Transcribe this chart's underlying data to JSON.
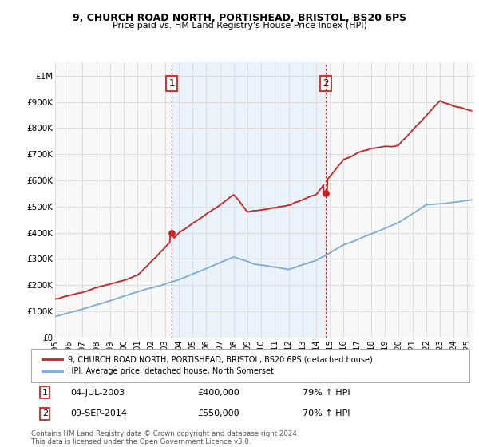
{
  "title1": "9, CHURCH ROAD NORTH, PORTISHEAD, BRISTOL, BS20 6PS",
  "title2": "Price paid vs. HM Land Registry's House Price Index (HPI)",
  "ylabel_ticks": [
    "£0",
    "£100K",
    "£200K",
    "£300K",
    "£400K",
    "£500K",
    "£600K",
    "£700K",
    "£800K",
    "£900K",
    "£1M"
  ],
  "ytick_values": [
    0,
    100000,
    200000,
    300000,
    400000,
    500000,
    600000,
    700000,
    800000,
    900000,
    1000000
  ],
  "ylim": [
    0,
    1050000
  ],
  "sale1_price": 400000,
  "sale2_price": 550000,
  "sale1_date": "04-JUL-2003",
  "sale2_date": "09-SEP-2014",
  "sale1_label": "79% ↑ HPI",
  "sale2_label": "70% ↑ HPI",
  "sale1_x": 2003.5,
  "sale2_x": 2014.67,
  "red_color": "#cc2222",
  "blue_color": "#7aabdc",
  "shade_color": "#ddeeff",
  "vline_color": "#cc2222",
  "grid_color": "#dddddd",
  "bg_color": "#f8f8f8",
  "legend_label_red": "9, CHURCH ROAD NORTH, PORTISHEAD, BRISTOL, BS20 6PS (detached house)",
  "legend_label_blue": "HPI: Average price, detached house, North Somerset",
  "footer": "Contains HM Land Registry data © Crown copyright and database right 2024.\nThis data is licensed under the Open Government Licence v3.0.",
  "xlim_start": 1995,
  "xlim_end": 2025.5
}
